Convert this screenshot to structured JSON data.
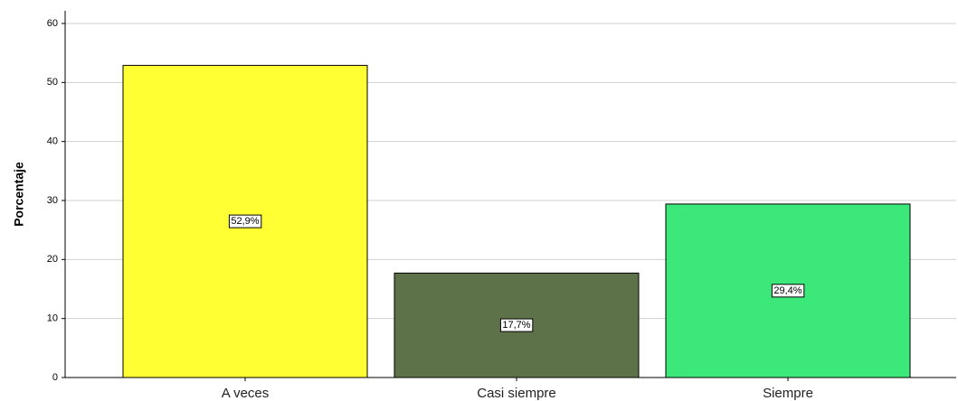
{
  "chart_data": {
    "type": "bar",
    "y_label": "Porcentaje",
    "categories": [
      "A veces",
      "Casi siempre",
      "Siempre"
    ],
    "values": [
      52.9,
      17.7,
      29.4
    ],
    "value_labels": [
      "52,9%",
      "17,7%",
      "29,4%"
    ],
    "colors": [
      "#ffff33",
      "#5e724a",
      "#3de87a"
    ],
    "ylim": [
      0,
      60
    ],
    "yticks": [
      0,
      10,
      20,
      30,
      40,
      50,
      60
    ],
    "grid": true
  }
}
